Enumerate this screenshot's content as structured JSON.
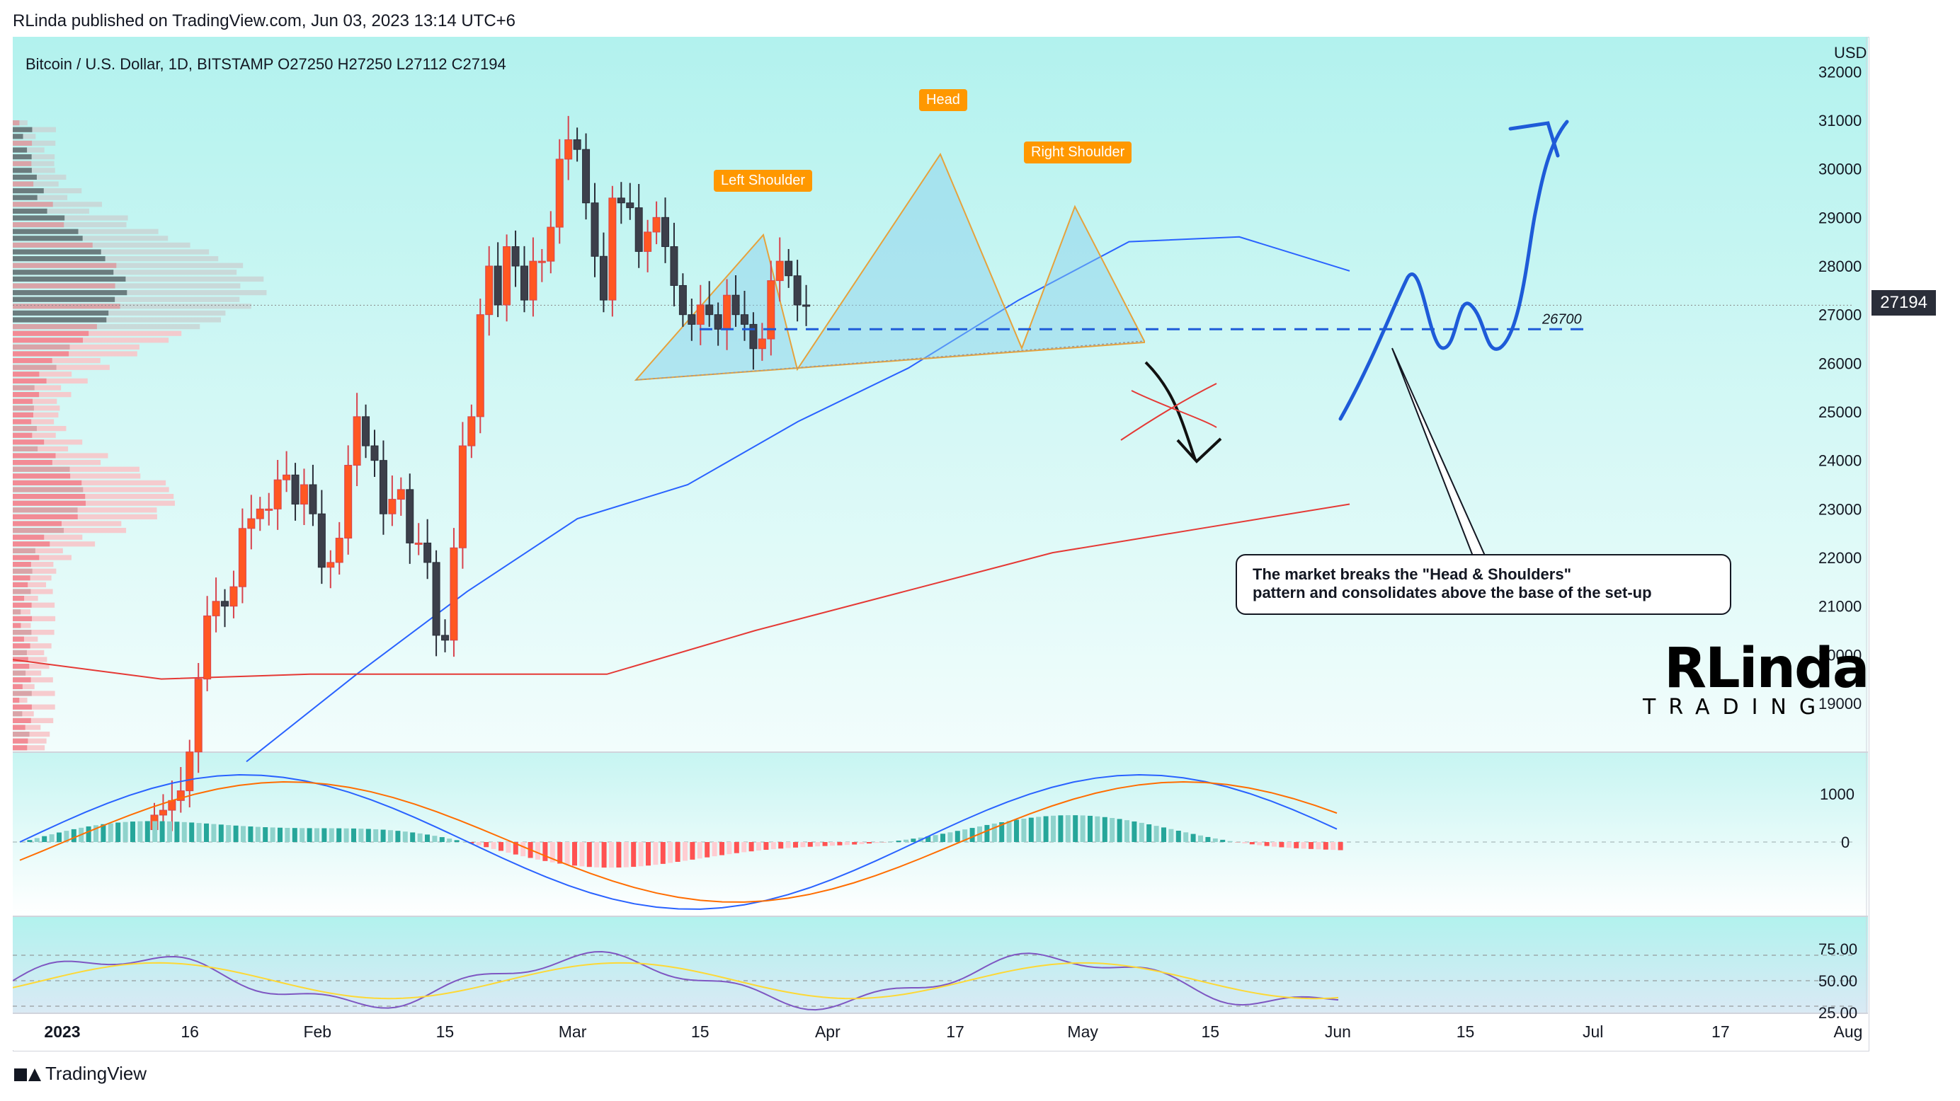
{
  "header": {
    "text": "RLinda published on TradingView.com, Jun 03, 2023 13:14 UTC+6"
  },
  "symbol": {
    "text": "Bitcoin / U.S. Dollar, 1D, BITSTAMP",
    "ohlc": "O27250  H27250  L27112  C27194"
  },
  "currency": "USD",
  "last_price": "27194",
  "brand": "TradingView",
  "logo": {
    "main": "RLinda",
    "sub": "TRADING"
  },
  "pattern_labels": {
    "left": "Left Shoulder",
    "head": "Head",
    "right": "Right Shoulder"
  },
  "support_label": "26700",
  "note": {
    "line1": "The market breaks the \"Head & Shoulders\"",
    "line2": "pattern and consolidates above the base of the set-up"
  },
  "colors": {
    "panel_bg": "#b2f2ee",
    "up": "#ff5722",
    "down": "#3c3f4a",
    "ma_blue": "#2962ff",
    "ma_red": "#e53935",
    "accent_orange": "#ff9800",
    "drawing_blue": "#1e5bd8"
  },
  "chart_data": {
    "type": "candlestick",
    "title": "Bitcoin / U.S. Dollar, 1D, BITSTAMP",
    "price_axis": {
      "ticks": [
        19000,
        20000,
        21000,
        22000,
        23000,
        24000,
        25000,
        26000,
        27000,
        28000,
        29000,
        30000,
        31000,
        32000
      ],
      "range": [
        18000,
        32200
      ]
    },
    "time_axis": {
      "labels": [
        "2023",
        "16",
        "Feb",
        "15",
        "Mar",
        "15",
        "Apr",
        "17",
        "May",
        "15",
        "Jun",
        "15",
        "Jul",
        "17",
        "Aug"
      ]
    },
    "ohlc_last": {
      "open": 27250,
      "high": 27250,
      "low": 27112,
      "close": 27194
    },
    "close_path": [
      16700,
      16800,
      17000,
      17200,
      18000,
      19500,
      20800,
      21100,
      21000,
      21400,
      22600,
      22800,
      23000,
      23000,
      23600,
      23700,
      23100,
      23500,
      22900,
      21800,
      21900,
      22400,
      23900,
      24900,
      24300,
      24000,
      22900,
      23200,
      23400,
      22300,
      22300,
      21900,
      20400,
      20300,
      22200,
      24300,
      24900,
      27000,
      28000,
      27200,
      28400,
      28000,
      27300,
      28100,
      28100,
      28800,
      30200,
      30600,
      30400,
      29300,
      28200,
      27300,
      29400,
      29300,
      29200,
      28300,
      28700,
      29000,
      28400,
      27600,
      27000,
      26800,
      27200,
      27000,
      26700,
      27400,
      27000,
      26800,
      26300,
      26500,
      27700,
      28100,
      27800,
      27200,
      27194
    ],
    "ma50_path": [
      17800,
      19600,
      21300,
      22800,
      23500,
      24800,
      25900,
      27300,
      28500,
      28600,
      27900
    ],
    "ma200_path": [
      19900,
      19500,
      19600,
      19600,
      19600,
      20500,
      21300,
      22100,
      22600,
      23100
    ],
    "support_level": 26700,
    "macd_axis": {
      "ticks": [
        1000,
        0
      ]
    },
    "rsi_axis": {
      "ticks": [
        75.0,
        50.0,
        25.0
      ],
      "levels": [
        70,
        50,
        30
      ]
    }
  }
}
